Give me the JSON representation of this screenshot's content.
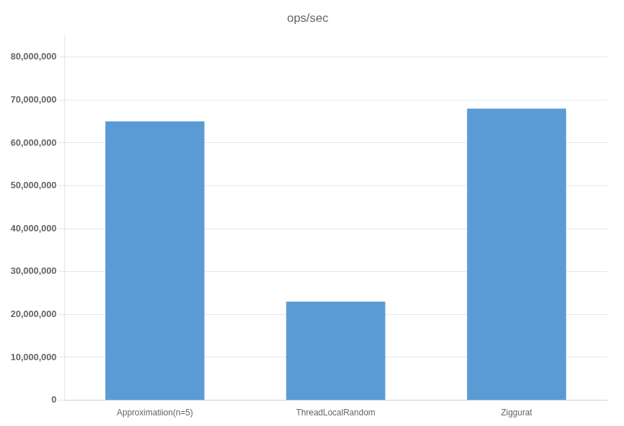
{
  "chart_data": {
    "type": "bar",
    "title": "ops/sec",
    "categories": [
      "Approximatiion(n=5)",
      "ThreadLocalRandom",
      "Ziggurat"
    ],
    "values": [
      65000000,
      23000000,
      68000000
    ],
    "color": "#5b9bd5",
    "ylim": [
      0,
      85000000
    ],
    "yticks": [
      0,
      {
        "value": 10000000,
        "label": "10,000,000"
      },
      {
        "value": 20000000,
        "label": "20,000,000"
      },
      {
        "value": 30000000,
        "label": "30,000,000"
      },
      {
        "value": 40000000,
        "label": "40,000,000"
      },
      {
        "value": 50000000,
        "label": "50,000,000"
      },
      {
        "value": 60000000,
        "label": "60,000,000"
      },
      {
        "value": 70000000,
        "label": "70,000,000"
      },
      {
        "value": 80000000,
        "label": "80,000,000"
      }
    ],
    "grid": true
  }
}
